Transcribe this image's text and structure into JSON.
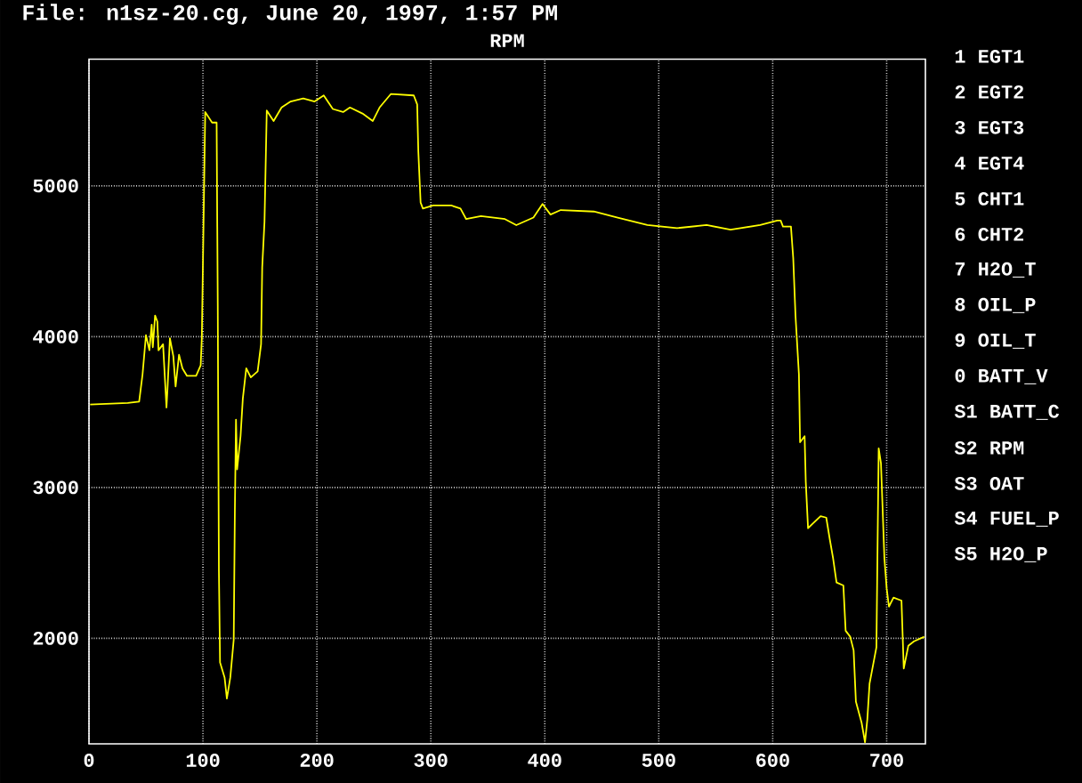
{
  "chart_data": {
    "type": "line",
    "title": "RPM",
    "subtitle": "File: n1sz-20.cg, June 20, 1997, 1:57 PM",
    "annotations": [
      "1 EGT1",
      "2 EGT2",
      "3 EGT3",
      "4 EGT4",
      "5 CHT1",
      "6 CHT2",
      "7 H2O_T",
      "8 OIL_P",
      "9 OIL_T",
      "0 BATT_V",
      "S1 BATT_C",
      "S2 RPM",
      "S3 OAT",
      "S4 FUEL_P",
      "S5 H2O_P"
    ],
    "x": [
      1,
      34,
      44,
      47,
      50,
      53,
      55,
      56,
      58,
      60,
      61,
      65,
      68,
      69,
      71,
      74,
      76,
      79,
      82,
      86,
      94,
      98,
      99,
      102,
      108,
      112,
      113,
      114,
      115,
      119,
      121,
      124,
      127,
      128,
      129,
      130,
      133,
      135,
      138,
      142,
      148,
      151,
      152,
      154,
      156,
      162,
      169,
      177,
      188,
      198,
      206,
      214,
      223,
      229,
      240,
      249,
      255,
      265,
      285,
      288,
      289,
      291,
      293,
      302,
      318,
      326,
      331,
      344,
      365,
      375,
      390,
      398,
      405,
      414,
      443,
      464,
      490,
      516,
      542,
      563,
      589,
      604,
      607,
      609,
      616,
      618,
      620,
      623,
      624,
      628,
      629,
      631,
      635,
      642,
      647,
      650,
      653,
      656,
      662,
      664,
      668,
      671,
      673,
      678,
      681,
      683,
      685,
      689,
      691,
      692,
      693,
      695,
      698,
      700,
      702,
      706,
      713,
      715,
      719,
      724,
      733
    ],
    "series": [
      {
        "color": "#ffff00",
        "values": [
          3550,
          3560,
          3570,
          3750,
          4010,
          3910,
          4080,
          3930,
          4140,
          4100,
          3910,
          3950,
          3530,
          3670,
          3990,
          3870,
          3670,
          3880,
          3790,
          3740,
          3740,
          3810,
          3990,
          5490,
          5420,
          5420,
          4200,
          2450,
          1840,
          1740,
          1600,
          1740,
          1990,
          2840,
          3450,
          3120,
          3340,
          3590,
          3790,
          3730,
          3770,
          3950,
          4460,
          4760,
          5500,
          5430,
          5520,
          5560,
          5580,
          5560,
          5600,
          5510,
          5490,
          5520,
          5480,
          5430,
          5520,
          5610,
          5600,
          5540,
          5230,
          4890,
          4850,
          4870,
          4870,
          4850,
          4780,
          4800,
          4780,
          4740,
          4790,
          4880,
          4810,
          4840,
          4830,
          4790,
          4740,
          4720,
          4740,
          4710,
          4740,
          4770,
          4770,
          4730,
          4730,
          4520,
          4140,
          3750,
          3300,
          3340,
          3040,
          2730,
          2760,
          2810,
          2800,
          2660,
          2530,
          2370,
          2350,
          2050,
          2010,
          1920,
          1580,
          1440,
          1310,
          1460,
          1700,
          1860,
          1940,
          2610,
          3260,
          3160,
          2530,
          2330,
          2210,
          2270,
          2250,
          1800,
          1950,
          1980,
          2010
        ]
      }
    ],
    "xlim": [
      0,
      734
    ],
    "ylim": [
      1300,
      5840
    ],
    "xticks": [
      0,
      100,
      200,
      300,
      400,
      500,
      600,
      700
    ],
    "yticks": [
      2000,
      3000,
      4000,
      5000
    ],
    "grid": true
  }
}
